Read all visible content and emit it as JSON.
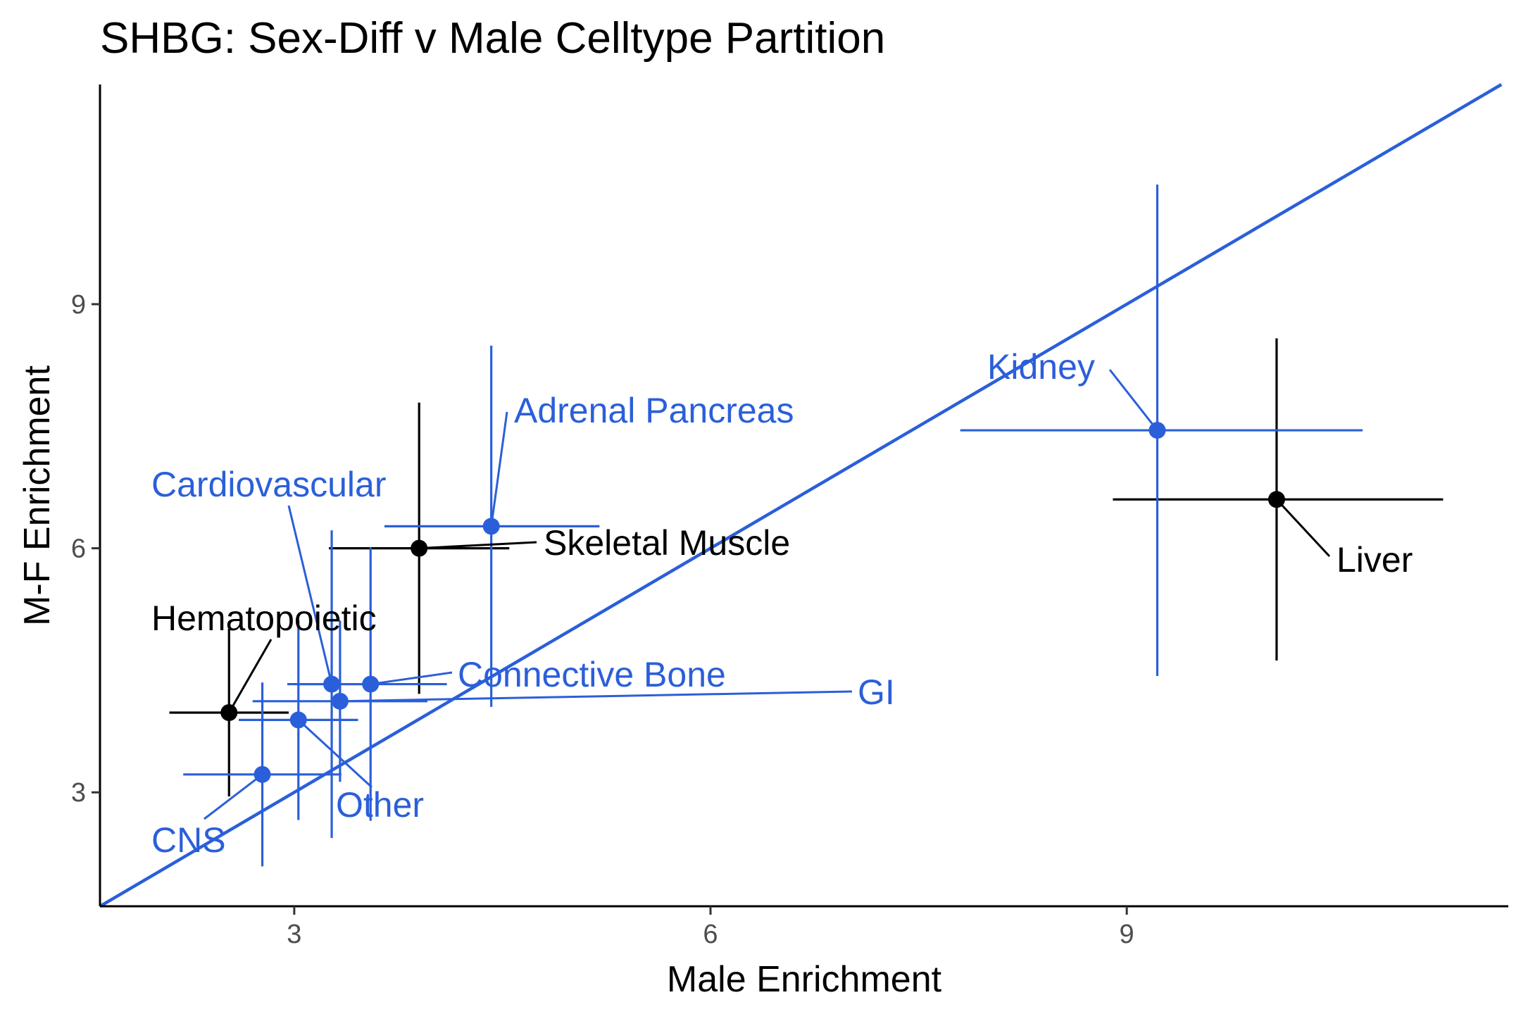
{
  "chart_data": {
    "type": "scatter",
    "title": "SHBG: Sex-Diff v Male Celltype Partition",
    "xlabel": "Male Enrichment",
    "ylabel": "M-F Enrichment",
    "xlim": [
      1.6,
      11.75
    ],
    "ylim": [
      1.6,
      11.7
    ],
    "x_ticks": [
      3,
      6,
      9
    ],
    "y_ticks": [
      3,
      6,
      9
    ],
    "grid": false,
    "legend": "none",
    "reference_line": {
      "type": "identity",
      "slope": 1,
      "intercept": 0,
      "color": "#2b5fd9"
    },
    "colors": {
      "highlight": "#000000",
      "other": "#2b5fd9"
    },
    "points": [
      {
        "label": "Liver",
        "x": 10.08,
        "y": 6.6,
        "x_lo": 8.9,
        "x_hi": 11.28,
        "y_lo": 4.62,
        "y_hi": 8.58,
        "color": "#000000"
      },
      {
        "label": "Kidney",
        "x": 9.22,
        "y": 7.45,
        "x_lo": 7.8,
        "x_hi": 10.7,
        "y_lo": 4.43,
        "y_hi": 10.47,
        "color": "#2b5fd9"
      },
      {
        "label": "Skeletal Muscle",
        "x": 3.9,
        "y": 6.0,
        "x_lo": 3.25,
        "x_hi": 4.55,
        "y_lo": 4.21,
        "y_hi": 7.79,
        "color": "#000000"
      },
      {
        "label": "Adrenal Pancreas",
        "x": 4.42,
        "y": 6.27,
        "x_lo": 3.65,
        "x_hi": 5.2,
        "y_lo": 4.05,
        "y_hi": 8.49,
        "color": "#2b5fd9"
      },
      {
        "label": "Cardiovascular",
        "x": 3.27,
        "y": 4.33,
        "x_lo": 2.95,
        "x_hi": 3.59,
        "y_lo": 2.44,
        "y_hi": 6.22,
        "color": "#2b5fd9"
      },
      {
        "label": "Connective Bone",
        "x": 3.55,
        "y": 4.33,
        "x_lo": 3.0,
        "x_hi": 4.1,
        "y_lo": 2.65,
        "y_hi": 6.01,
        "color": "#2b5fd9"
      },
      {
        "label": "GI",
        "x": 3.33,
        "y": 4.12,
        "x_lo": 2.7,
        "x_hi": 3.96,
        "y_lo": 3.13,
        "y_hi": 5.11,
        "color": "#2b5fd9"
      },
      {
        "label": "Hematopoietic",
        "x": 2.53,
        "y": 3.98,
        "x_lo": 2.1,
        "x_hi": 2.96,
        "y_lo": 2.95,
        "y_hi": 5.01,
        "color": "#000000"
      },
      {
        "label": "Other",
        "x": 3.03,
        "y": 3.89,
        "x_lo": 2.6,
        "x_hi": 3.46,
        "y_lo": 2.66,
        "y_hi": 5.12,
        "color": "#2b5fd9"
      },
      {
        "label": "CNS",
        "x": 2.77,
        "y": 3.22,
        "x_lo": 2.2,
        "x_hi": 3.34,
        "y_lo": 2.09,
        "y_hi": 4.35,
        "color": "#2b5fd9"
      }
    ]
  }
}
